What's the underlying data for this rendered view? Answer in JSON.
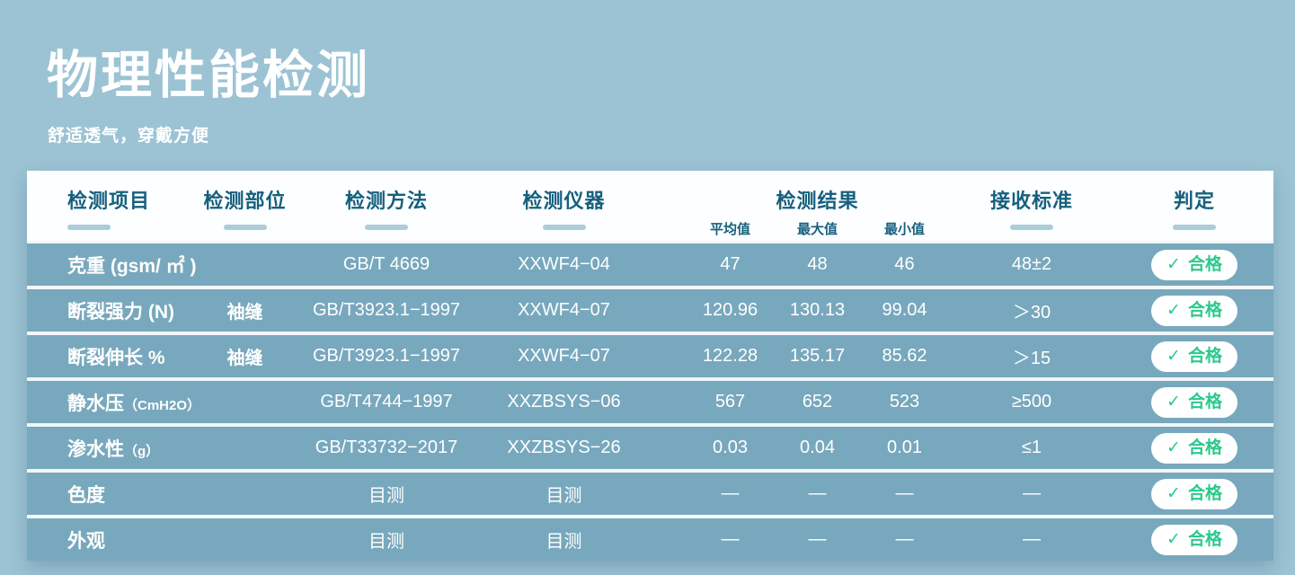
{
  "page": {
    "title": "物理性能检测",
    "subtitle": "舒适透气，穿戴方便"
  },
  "colors": {
    "page_background": "#9cc3d4",
    "row_blue": "#78a8bd",
    "header_text_teal": "#16607e",
    "underline_accent": "#a9cdd9",
    "pass_green": "#2bc98c"
  },
  "table": {
    "headers": {
      "item": "检测项目",
      "part": "检测部位",
      "method": "检测方法",
      "instrument": "检测仪器",
      "result": "检测结果",
      "result_sub": {
        "avg": "平均值",
        "max": "最大值",
        "min": "最小值"
      },
      "standard": "接收标准",
      "judgment": "判定"
    },
    "check_icon": "✓",
    "rows": [
      {
        "item": "克重 (gsm/ ㎡ )",
        "item_small": "",
        "part": "",
        "method": "GB/T 4669",
        "instrument": "XXWF4−04",
        "avg": "47",
        "max": "48",
        "min": "46",
        "standard": "48±2",
        "judgment": "合格"
      },
      {
        "item": "断裂强力 (N)",
        "item_small": "",
        "part": "袖缝",
        "method": "GB/T3923.1−1997",
        "instrument": "XXWF4−07",
        "avg": "120.96",
        "max": "130.13",
        "min": "99.04",
        "standard": "＞30",
        "judgment": "合格"
      },
      {
        "item": "断裂伸长 %",
        "item_small": "",
        "part": "袖缝",
        "method": "GB/T3923.1−1997",
        "instrument": "XXWF4−07",
        "avg": "122.28",
        "max": "135.17",
        "min": "85.62",
        "standard": "＞15",
        "judgment": "合格"
      },
      {
        "item": "静水压",
        "item_small": "（CmH2O）",
        "part": "",
        "method": "GB/T4744−1997",
        "instrument": "XXZBSYS−06",
        "avg": "567",
        "max": "652",
        "min": "523",
        "standard": "≥500",
        "judgment": "合格"
      },
      {
        "item": "渗水性",
        "item_small": "（g）",
        "part": "",
        "method": "GB/T33732−2017",
        "instrument": "XXZBSYS−26",
        "avg": "0.03",
        "max": "0.04",
        "min": "0.01",
        "standard": "≤1",
        "judgment": "合格"
      },
      {
        "item": "色度",
        "item_small": "",
        "part": "",
        "method": "目测",
        "instrument": "目测",
        "avg": "—",
        "max": "—",
        "min": "—",
        "standard": "—",
        "judgment": "合格"
      },
      {
        "item": "外观",
        "item_small": "",
        "part": "",
        "method": "目测",
        "instrument": "目测",
        "avg": "—",
        "max": "—",
        "min": "—",
        "standard": "—",
        "judgment": "合格"
      }
    ]
  }
}
